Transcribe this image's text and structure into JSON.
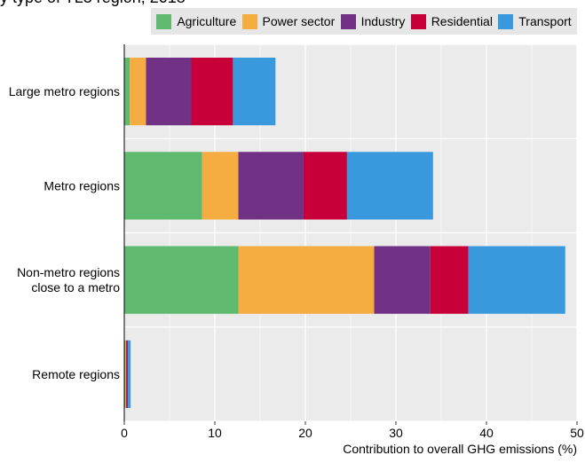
{
  "title_fragment": "y type of TL3 region, 2018",
  "chart_data": {
    "type": "bar",
    "orientation": "horizontal",
    "stacked": true,
    "categories": [
      "Large metro regions",
      "Metro regions",
      "Non-metro regions close to a metro",
      "Remote regions"
    ],
    "category_lines": [
      [
        "Large metro regions"
      ],
      [
        "Metro regions"
      ],
      [
        "Non-metro regions",
        "close to a metro"
      ],
      [
        "Remote regions"
      ]
    ],
    "series": [
      {
        "name": "Agriculture",
        "color": "#5fba70",
        "values": [
          0.6,
          8.6,
          12.6,
          0.1
        ]
      },
      {
        "name": "Power sector",
        "color": "#f5ad42",
        "values": [
          1.8,
          4.0,
          15.0,
          0.1
        ]
      },
      {
        "name": "Industry",
        "color": "#713184",
        "values": [
          5.0,
          7.2,
          6.2,
          0.1
        ]
      },
      {
        "name": "Residential",
        "color": "#c8003a",
        "values": [
          4.6,
          4.8,
          4.2,
          0.1
        ]
      },
      {
        "name": "Transport",
        "color": "#3a99dd",
        "values": [
          4.7,
          9.5,
          10.7,
          0.3
        ]
      }
    ],
    "xlabel": "Contribution to overall GHG emissions (%)",
    "ylabel": "",
    "xlim": [
      0,
      50
    ],
    "xticks": [
      0,
      10,
      20,
      30,
      40,
      50
    ],
    "grid": true,
    "legend_position": "top"
  }
}
